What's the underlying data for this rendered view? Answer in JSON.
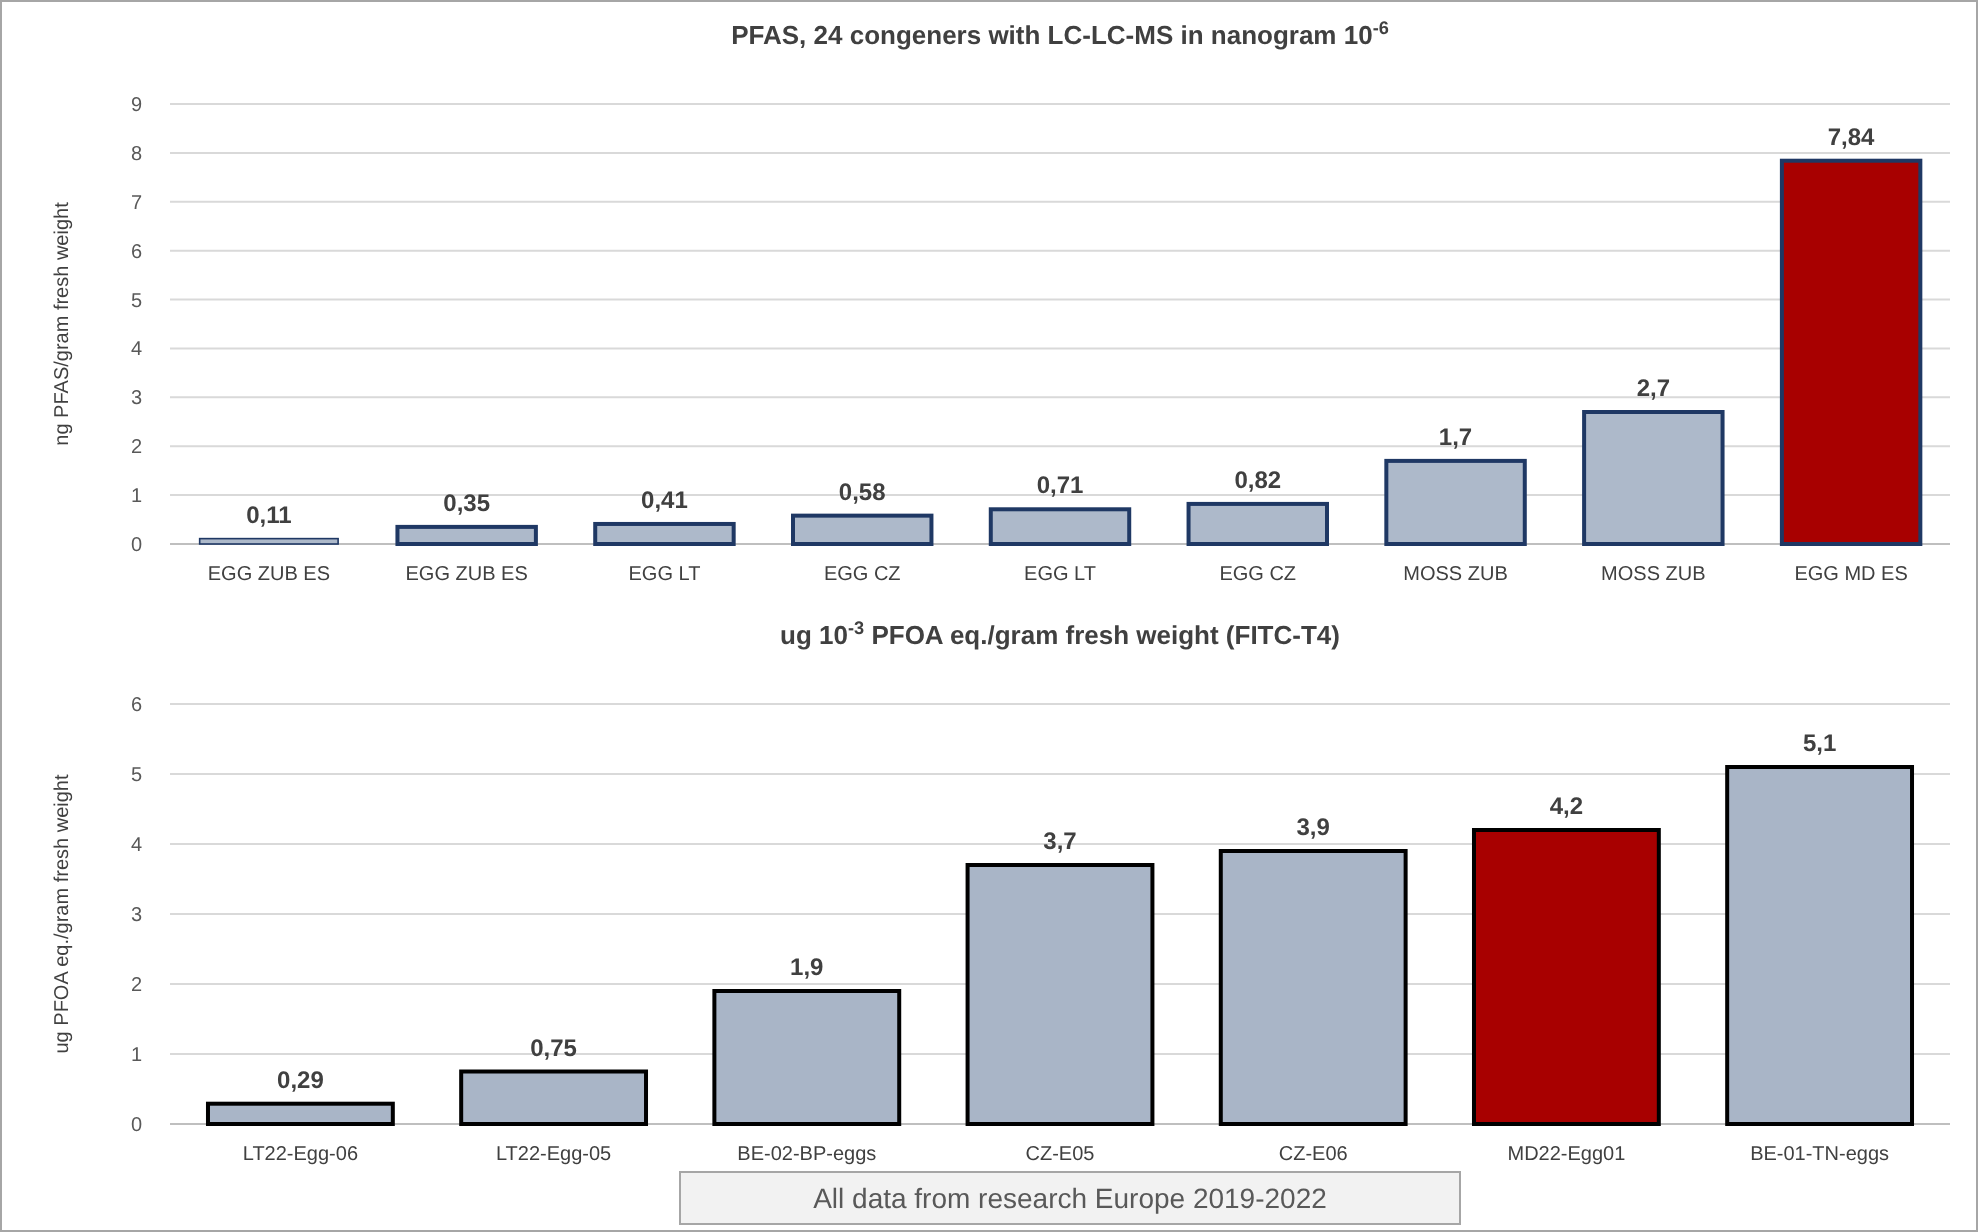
{
  "chart_data": [
    {
      "type": "bar",
      "title": "PFAS, 24 congeners with LC-LC-MS in nanogram 10$^{-6}$",
      "ylabel": "ng PFAS/gram fresh weight",
      "categories": [
        "EGG ZUB ES",
        "EGG ZUB ES",
        "EGG LT",
        "EGG CZ",
        "EGG LT",
        "EGG CZ",
        "MOSS ZUB",
        "MOSS ZUB",
        "EGG MD ES"
      ],
      "values": [
        0.11,
        0.35,
        0.41,
        0.58,
        0.71,
        0.82,
        1.7,
        2.7,
        7.84
      ],
      "value_labels": [
        "0,11",
        "0,35",
        "0,41",
        "0,58",
        "0,71",
        "0,82",
        "1,7",
        "2,7",
        "7,84"
      ],
      "colors": [
        "#adb9ca",
        "#adb9ca",
        "#adb9ca",
        "#adb9ca",
        "#adb9ca",
        "#adb9ca",
        "#adb9ca",
        "#adb9ca",
        "#a80000"
      ],
      "ylim": [
        0,
        9
      ],
      "yticks": [
        0,
        1,
        2,
        3,
        4,
        5,
        6,
        7,
        8,
        9
      ],
      "grid": "y"
    },
    {
      "type": "bar",
      "title": "ug 10$^{-3}$ PFOA eq./gram fresh weight (FITC-T4)",
      "ylabel": "ug PFOA eq./gram fresh weight",
      "categories": [
        "LT22-Egg-06",
        "LT22-Egg-05",
        "BE-02-BP-eggs",
        "CZ-E05",
        "CZ-E06",
        "MD22-Egg01",
        "BE-01-TN-eggs"
      ],
      "values": [
        0.29,
        0.75,
        1.9,
        3.7,
        3.9,
        4.2,
        5.1
      ],
      "value_labels": [
        "0,29",
        "0,75",
        "1,9",
        "3,7",
        "3,9",
        "4,2",
        "5,1"
      ],
      "colors": [
        "#a9b5c7",
        "#a9b5c7",
        "#a9b5c7",
        "#a9b5c7",
        "#a9b5c7",
        "#a80000",
        "#a9b5c7"
      ],
      "ylim": [
        0,
        6
      ],
      "yticks": [
        0,
        1,
        2,
        3,
        4,
        5,
        6
      ],
      "grid": "y",
      "annotations": [
        "All data from research Europe 2019-2022"
      ]
    }
  ]
}
